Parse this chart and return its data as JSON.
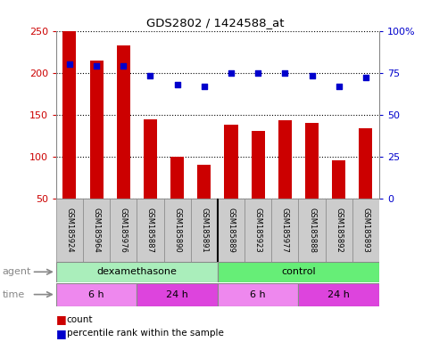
{
  "title": "GDS2802 / 1424588_at",
  "samples": [
    "GSM185924",
    "GSM185964",
    "GSM185976",
    "GSM185887",
    "GSM185890",
    "GSM185891",
    "GSM185889",
    "GSM185923",
    "GSM185977",
    "GSM185888",
    "GSM185892",
    "GSM185893"
  ],
  "counts": [
    250,
    214,
    232,
    144,
    100,
    90,
    138,
    130,
    143,
    140,
    95,
    134
  ],
  "percentile_ranks": [
    80,
    79,
    79,
    73,
    68,
    67,
    75,
    75,
    75,
    73,
    67,
    72
  ],
  "ylim_left": [
    50,
    250
  ],
  "ylim_right": [
    0,
    100
  ],
  "yticks_left": [
    50,
    100,
    150,
    200,
    250
  ],
  "yticks_right": [
    0,
    25,
    50,
    75,
    100
  ],
  "bar_color": "#cc0000",
  "dot_color": "#0000cc",
  "grid_color": "#000000",
  "agent_groups": [
    {
      "label": "dexamethasone",
      "start": 0,
      "end": 6,
      "color": "#aaeebb"
    },
    {
      "label": "control",
      "start": 6,
      "end": 12,
      "color": "#66ee77"
    }
  ],
  "time_groups": [
    {
      "label": "6 h",
      "start": 0,
      "end": 3,
      "color": "#ee88ee"
    },
    {
      "label": "24 h",
      "start": 3,
      "end": 6,
      "color": "#dd44dd"
    },
    {
      "label": "6 h",
      "start": 6,
      "end": 9,
      "color": "#ee88ee"
    },
    {
      "label": "24 h",
      "start": 9,
      "end": 12,
      "color": "#dd44dd"
    }
  ],
  "legend_count_color": "#cc0000",
  "legend_pct_color": "#0000cc",
  "left_tick_color": "#cc0000",
  "right_tick_color": "#0000cc",
  "bar_width": 0.5,
  "sample_box_color": "#cccccc",
  "label_color": "#888888",
  "arrow_color": "#888888"
}
